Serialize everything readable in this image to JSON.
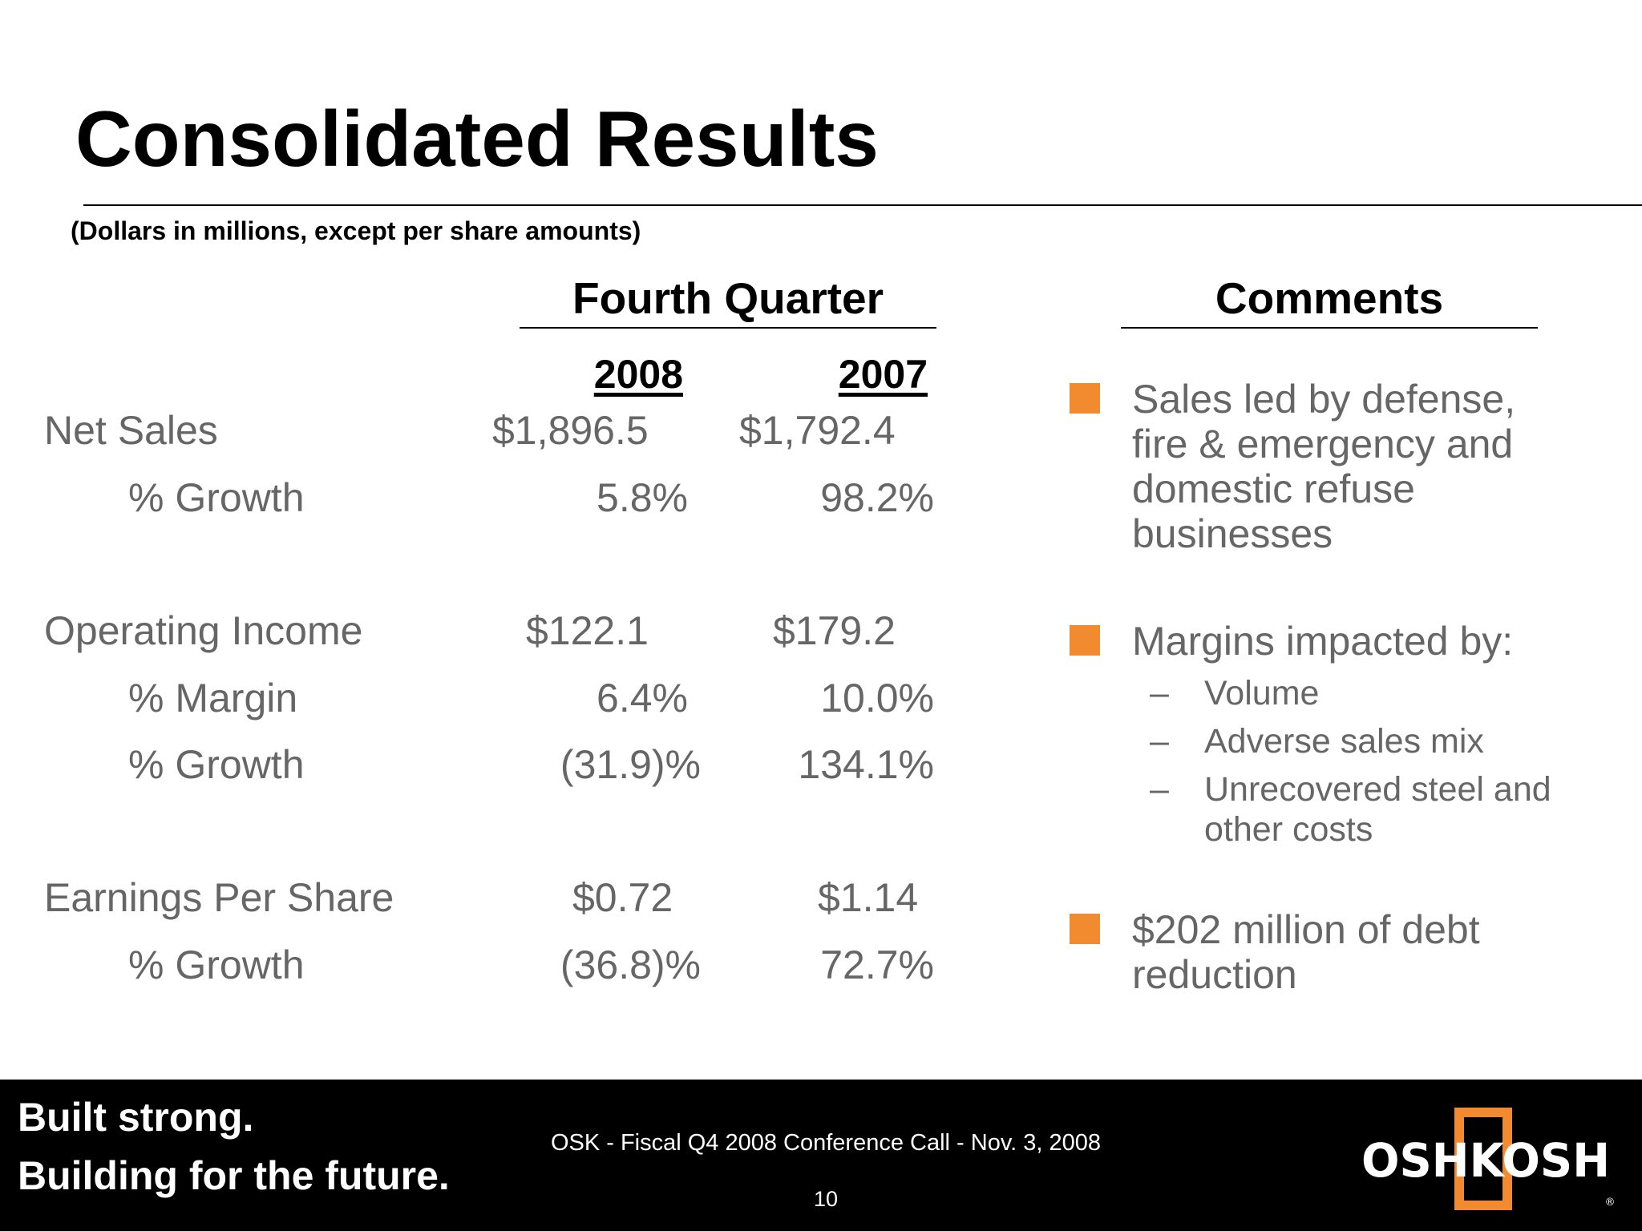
{
  "slide": {
    "title": "Consolidated Results",
    "subtitle": "(Dollars in millions, except per share amounts)"
  },
  "table": {
    "header": "Fourth Quarter",
    "years": [
      "2008",
      "2007"
    ],
    "rows": [
      {
        "label": "Net Sales",
        "v2008": "$1,896.5",
        "v2007": "$1,792.4"
      },
      {
        "label": "% Growth",
        "v2008": "5.8%",
        "v2007": "98.2%"
      },
      {
        "label": "Operating Income",
        "v2008": "$122.1",
        "v2007": "$179.2"
      },
      {
        "label": "% Margin",
        "v2008": "6.4%",
        "v2007": "10.0%"
      },
      {
        "label": "% Growth",
        "v2008": "(31.9)%",
        "v2007": "134.1%"
      },
      {
        "label": "Earnings Per Share",
        "v2008": "$0.72",
        "v2007": "$1.14"
      },
      {
        "label": "% Growth",
        "v2008": "(36.8)%",
        "v2007": "72.7%"
      }
    ]
  },
  "comments": {
    "header": "Comments",
    "items": [
      {
        "text": "Sales led by defense, fire & emergency and domestic refuse businesses"
      },
      {
        "text": "Margins impacted by:",
        "subitems": [
          "Volume",
          "Adverse sales mix",
          "Unrecovered steel and other costs"
        ]
      },
      {
        "text": "$202 million of debt reduction"
      }
    ]
  },
  "footer": {
    "tagline_1": "Built strong.",
    "tagline_2": "Building for the future.",
    "center_text": "OSK - Fiscal Q4 2008 Conference Call - Nov. 3, 2008",
    "page_number": "10",
    "logo_text": "OSHKOSH",
    "dash": "–"
  },
  "colors": {
    "bullet": "#f28a30",
    "body_text": "#666666",
    "footer_bg": "#000000",
    "logo_accent": "#f28a30"
  }
}
